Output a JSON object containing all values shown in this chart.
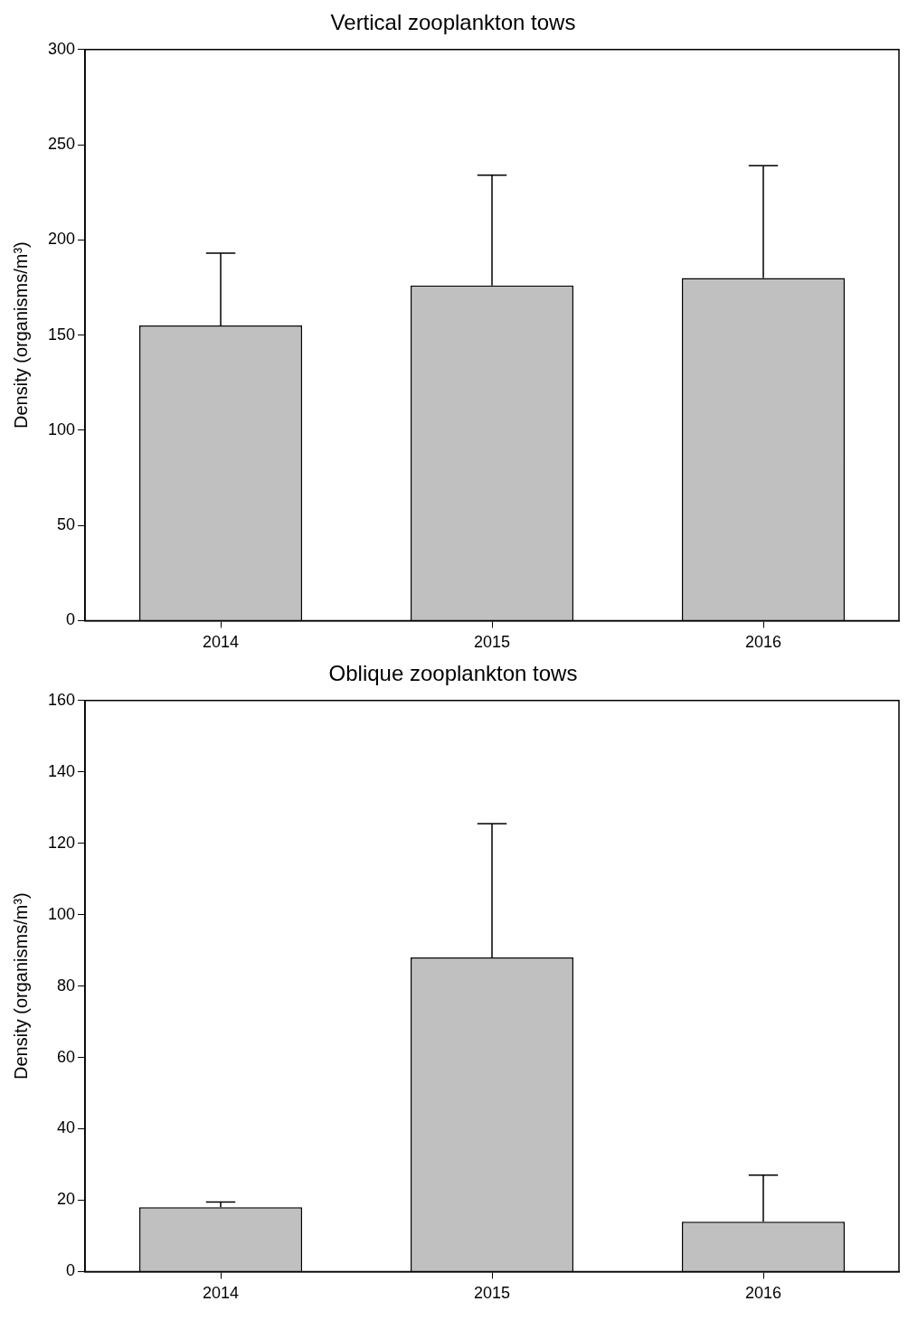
{
  "chart_data": [
    {
      "type": "bar",
      "title": "Vertical zooplankton tows",
      "ylabel": "Density (organisms/m³)",
      "categories": [
        "2014",
        "2015",
        "2016"
      ],
      "values": [
        155,
        176,
        180
      ],
      "errors": [
        [
          155,
          193
        ],
        [
          176,
          234
        ],
        [
          180,
          239
        ]
      ],
      "color": "#c0c0c0",
      "ylim": [
        0,
        300
      ],
      "yticks": [
        0,
        50,
        100,
        150,
        200,
        250,
        300
      ],
      "grid": false,
      "legend": false
    },
    {
      "type": "bar",
      "title": "Oblique zooplankton tows",
      "ylabel": "Density (organisms/m³)",
      "categories": [
        "2014",
        "2015",
        "2016"
      ],
      "values": [
        18,
        88,
        14
      ],
      "errors": [
        [
          18,
          19.5
        ],
        [
          88,
          125.5
        ],
        [
          14,
          27
        ]
      ],
      "color": "#c0c0c0",
      "ylim": [
        0,
        160
      ],
      "yticks": [
        0,
        20,
        40,
        60,
        80,
        100,
        120,
        140,
        160
      ],
      "grid": false,
      "legend": false
    }
  ]
}
